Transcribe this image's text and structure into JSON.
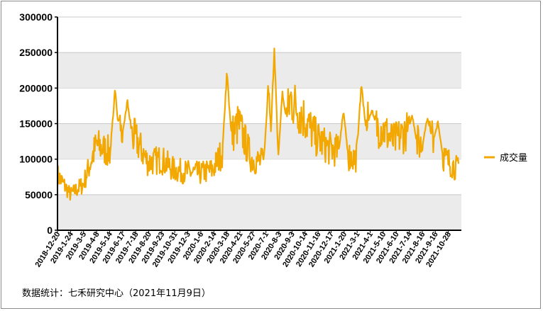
{
  "source_note": "数据统计：七禾研究中心（2021年11月9日）",
  "chart_data": {
    "type": "line",
    "title": "",
    "xlabel": "",
    "ylabel": "",
    "ylim": [
      0,
      300000
    ],
    "yticks": [
      0,
      50000,
      100000,
      150000,
      200000,
      250000,
      300000
    ],
    "grid": "horizontal-bands",
    "legend": {
      "position": "right",
      "entries": [
        "成交量"
      ]
    },
    "series_color": "#F2A800",
    "band_color": "#EBEBEB",
    "x_tick_labels": [
      "2018-12-20",
      "2019-1-24",
      "2019-3-5",
      "2019-4-8",
      "2019-5-14",
      "2019-6-17",
      "2019-7-18",
      "2019-8-20",
      "2019-9-23",
      "2019-10-31",
      "2019-12-3",
      "2020-1-6",
      "2020-2-14",
      "2020-3-18",
      "2020-4-21",
      "2020-5-27",
      "2020-7-1",
      "2020-8-3",
      "2020-9-3",
      "2020-10-14",
      "2020-11-16",
      "2020-12-17",
      "2021-1-20",
      "2021-3-1",
      "2021-4-1",
      "2021-5-10",
      "2021-6-10",
      "2021-7-14",
      "2021-8-16",
      "2021-9-16",
      "2021-10-28"
    ],
    "series": [
      {
        "name": "成交量",
        "anchors": [
          [
            0,
            78000
          ],
          [
            1,
            50000
          ],
          [
            2,
            65000
          ],
          [
            3,
            120000
          ],
          [
            4,
            110000
          ],
          [
            5,
            140000
          ],
          [
            6,
            130000
          ],
          [
            7,
            95000
          ],
          [
            8,
            100000
          ],
          [
            9,
            85000
          ],
          [
            10,
            82000
          ],
          [
            11,
            80000
          ],
          [
            12,
            85000
          ],
          [
            13,
            120000
          ],
          [
            14,
            150000
          ],
          [
            15,
            100000
          ],
          [
            16,
            95000
          ],
          [
            17,
            85000
          ],
          [
            18,
            185000
          ],
          [
            19,
            160000
          ],
          [
            20,
            130000
          ],
          [
            21,
            115000
          ],
          [
            22,
            110000
          ],
          [
            23,
            100000
          ],
          [
            24,
            150000
          ],
          [
            25,
            145000
          ],
          [
            26,
            125000
          ],
          [
            27,
            140000
          ],
          [
            28,
            120000
          ],
          [
            29,
            130000
          ],
          [
            30,
            100000
          ],
          [
            31,
            85000
          ]
        ],
        "spikes": [
          [
            4.45,
            203000
          ],
          [
            5.4,
            185000
          ],
          [
            13.1,
            230000
          ],
          [
            16.3,
            218000
          ],
          [
            16.75,
            266000
          ],
          [
            17.4,
            200000
          ],
          [
            22.1,
            175000
          ],
          [
            23.5,
            215000
          ],
          [
            24.3,
            170000
          ],
          [
            27.4,
            165000
          ],
          [
            28.6,
            162000
          ],
          [
            29.4,
            155000
          ]
        ]
      }
    ]
  }
}
